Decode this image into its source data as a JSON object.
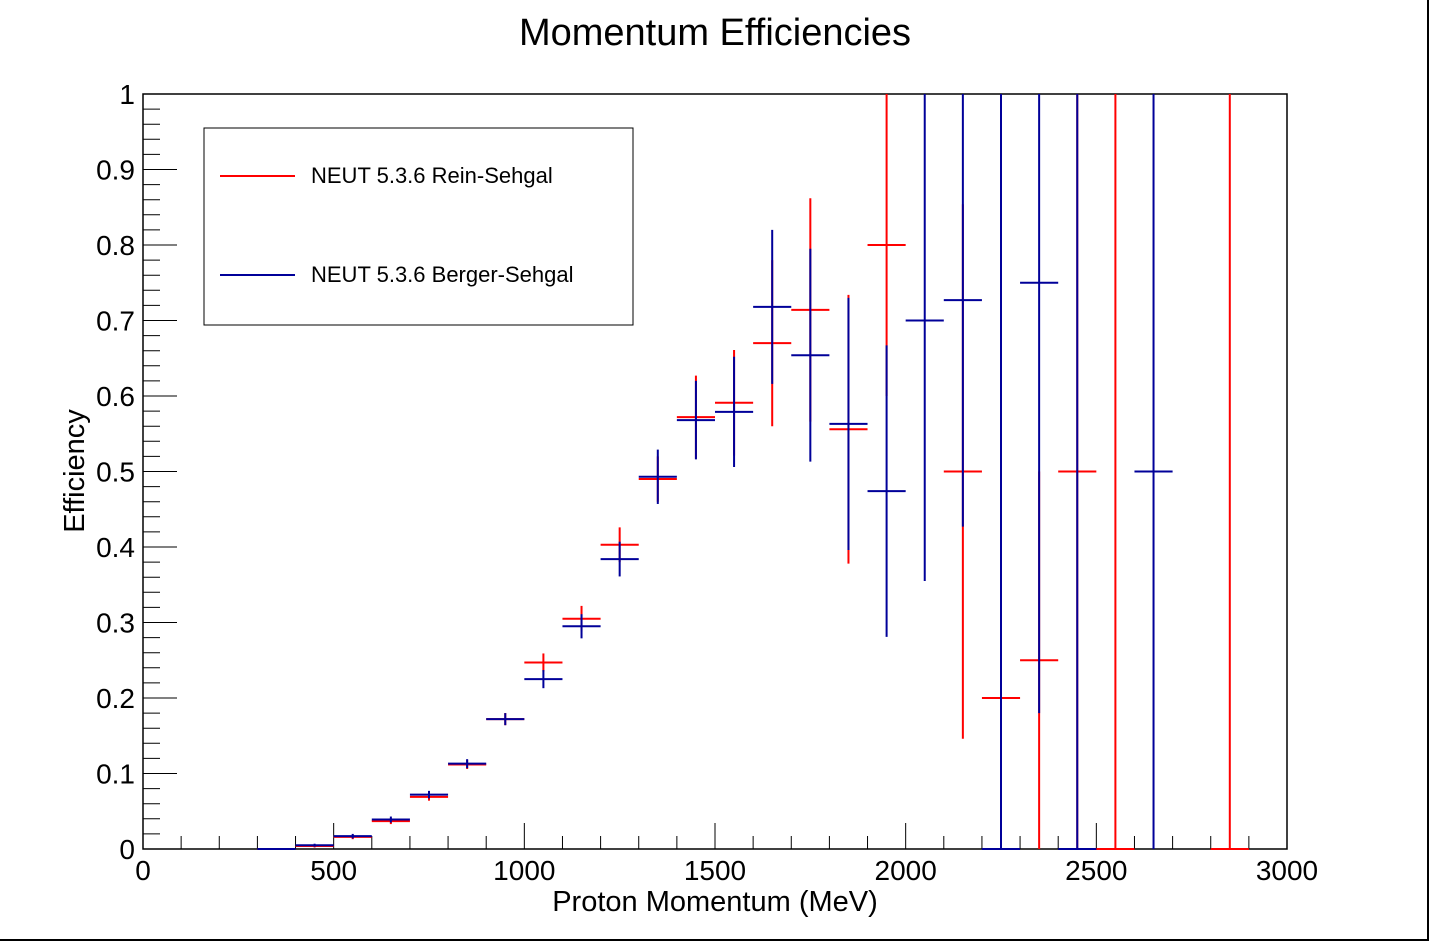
{
  "chart_data": {
    "type": "scatter",
    "title": "Momentum Efficiencies",
    "xlabel": "Proton Momentum (MeV)",
    "ylabel": "Efficiency",
    "xlim": [
      0,
      3000
    ],
    "ylim": [
      0,
      1
    ],
    "x_ticks": [
      "0",
      "500",
      "1000",
      "1500",
      "2000",
      "2500",
      "3000"
    ],
    "y_ticks": [
      "0",
      "0.1",
      "0.2",
      "0.3",
      "0.4",
      "0.5",
      "0.6",
      "0.7",
      "0.8",
      "0.9",
      "1"
    ],
    "bin_width": 100,
    "legend_position": "top-left",
    "grid": false,
    "series": [
      {
        "name": "NEUT 5.3.6 Rein-Sehgal",
        "color": "#ff0000",
        "points": [
          {
            "x": 350,
            "y": 0.0,
            "err": 0.0
          },
          {
            "x": 450,
            "y": 0.004,
            "err": 0.002
          },
          {
            "x": 550,
            "y": 0.016,
            "err": 0.003
          },
          {
            "x": 650,
            "y": 0.037,
            "err": 0.004
          },
          {
            "x": 750,
            "y": 0.069,
            "err": 0.005
          },
          {
            "x": 850,
            "y": 0.112,
            "err": 0.006
          },
          {
            "x": 950,
            "y": 0.172,
            "err": 0.008
          },
          {
            "x": 1050,
            "y": 0.247,
            "err": 0.012
          },
          {
            "x": 1150,
            "y": 0.305,
            "err": 0.017
          },
          {
            "x": 1250,
            "y": 0.403,
            "err": 0.023
          },
          {
            "x": 1350,
            "y": 0.49,
            "err": 0.03
          },
          {
            "x": 1450,
            "y": 0.572,
            "err": 0.055
          },
          {
            "x": 1550,
            "y": 0.591,
            "err": 0.07
          },
          {
            "x": 1650,
            "y": 0.67,
            "err": 0.11
          },
          {
            "x": 1750,
            "y": 0.714,
            "err": 0.148
          },
          {
            "x": 1850,
            "y": 0.556,
            "err": 0.178
          },
          {
            "x": 1950,
            "y": 0.8,
            "err": 0.2
          },
          {
            "x": 2150,
            "y": 0.5,
            "err": 0.354
          },
          {
            "x": 2250,
            "y": 0.2,
            "err": 0.2
          },
          {
            "x": 2350,
            "y": 0.25,
            "err": 0.25
          },
          {
            "x": 2450,
            "y": 0.5,
            "err": 0.5
          },
          {
            "x": 2550,
            "y": 0.0,
            "err": 1.0
          },
          {
            "x": 2850,
            "y": 0.0,
            "err": 1.0
          }
        ]
      },
      {
        "name": "NEUT 5.3.6 Berger-Sehgal",
        "color": "#000099",
        "points": [
          {
            "x": 350,
            "y": 0.0,
            "err": 0.0
          },
          {
            "x": 450,
            "y": 0.005,
            "err": 0.002
          },
          {
            "x": 550,
            "y": 0.017,
            "err": 0.003
          },
          {
            "x": 650,
            "y": 0.039,
            "err": 0.004
          },
          {
            "x": 750,
            "y": 0.072,
            "err": 0.005
          },
          {
            "x": 850,
            "y": 0.113,
            "err": 0.006
          },
          {
            "x": 950,
            "y": 0.172,
            "err": 0.008
          },
          {
            "x": 1050,
            "y": 0.225,
            "err": 0.012
          },
          {
            "x": 1150,
            "y": 0.295,
            "err": 0.016
          },
          {
            "x": 1250,
            "y": 0.384,
            "err": 0.023
          },
          {
            "x": 1350,
            "y": 0.493,
            "err": 0.036
          },
          {
            "x": 1450,
            "y": 0.568,
            "err": 0.052
          },
          {
            "x": 1550,
            "y": 0.579,
            "err": 0.073
          },
          {
            "x": 1650,
            "y": 0.718,
            "err": 0.102
          },
          {
            "x": 1750,
            "y": 0.654,
            "err": 0.141
          },
          {
            "x": 1850,
            "y": 0.563,
            "err": 0.167
          },
          {
            "x": 1950,
            "y": 0.474,
            "err": 0.193
          },
          {
            "x": 2050,
            "y": 0.7,
            "err": 0.345
          },
          {
            "x": 2150,
            "y": 0.727,
            "err": 0.3
          },
          {
            "x": 2250,
            "y": 0.0,
            "err": 1.0
          },
          {
            "x": 2350,
            "y": 0.75,
            "err": 0.57
          },
          {
            "x": 2450,
            "y": 0.0,
            "err": 1.0
          },
          {
            "x": 2650,
            "y": 0.5,
            "err": 0.5
          }
        ]
      }
    ]
  }
}
